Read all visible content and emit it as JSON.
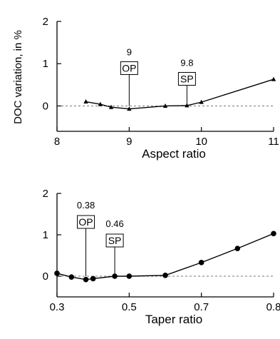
{
  "figure": {
    "ylabel": "DOC variation, in %"
  },
  "chart_data": [
    {
      "type": "line",
      "xlabel": "Aspect ratio",
      "ylabel": "DOC variation, in %",
      "xlim": [
        8,
        11
      ],
      "ylim": [
        -0.6,
        2
      ],
      "xticks": [
        "8",
        "9",
        "10",
        "11"
      ],
      "yticks": [
        "0",
        "1",
        "2"
      ],
      "grid": false,
      "reference_line": 0,
      "marker": "triangle",
      "series": [
        {
          "x": [
            8.4,
            8.6,
            8.75,
            9.0,
            9.5,
            9.8,
            10.0,
            11.0
          ],
          "values": [
            0.1,
            0.04,
            -0.03,
            -0.07,
            0.0,
            0.01,
            0.09,
            0.63
          ]
        }
      ],
      "annotations": [
        {
          "x": 9.0,
          "value": "9",
          "label": "OP"
        },
        {
          "x": 9.8,
          "value": "9.8",
          "label": "SP"
        }
      ]
    },
    {
      "type": "line",
      "xlabel": "Taper ratio",
      "ylabel": "",
      "xlim": [
        0.3,
        0.9
      ],
      "ylim": [
        -0.5,
        2
      ],
      "xticks": [
        "0.3",
        "0.5",
        "0.7",
        "0.8"
      ],
      "yticks": [
        "0",
        "1",
        "2"
      ],
      "grid": false,
      "reference_line": 0,
      "marker": "circle",
      "series": [
        {
          "x": [
            0.3,
            0.34,
            0.38,
            0.4,
            0.46,
            0.5,
            0.6,
            0.7,
            0.8,
            0.9
          ],
          "values": [
            0.07,
            -0.02,
            -0.08,
            -0.06,
            0.0,
            0.0,
            0.02,
            0.33,
            0.67,
            1.03
          ]
        }
      ],
      "annotations": [
        {
          "x": 0.38,
          "value": "0.38",
          "label": "OP"
        },
        {
          "x": 0.46,
          "value": "0.46",
          "label": "SP"
        }
      ]
    }
  ]
}
